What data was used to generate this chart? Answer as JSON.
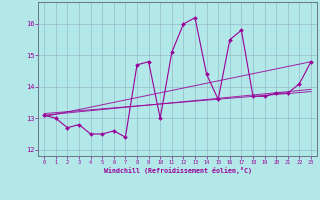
{
  "xlabel": "Windchill (Refroidissement éolien,°C)",
  "bg_color": "#b3e8e8",
  "line_color": "#990099",
  "grid_color": "#99bbcc",
  "x_hours": [
    0,
    1,
    2,
    3,
    4,
    5,
    6,
    7,
    8,
    9,
    10,
    11,
    12,
    13,
    14,
    15,
    16,
    17,
    18,
    19,
    20,
    21,
    22,
    23
  ],
  "windchill": [
    13.1,
    13.0,
    12.7,
    12.8,
    12.5,
    12.5,
    12.6,
    12.4,
    14.7,
    14.8,
    13.0,
    15.1,
    16.0,
    16.2,
    14.4,
    13.6,
    15.5,
    15.8,
    13.7,
    13.7,
    13.8,
    13.8,
    14.1,
    14.8
  ],
  "ylim": [
    11.8,
    16.7
  ],
  "xlim": [
    -0.5,
    23.5
  ],
  "yticks": [
    12,
    13,
    14,
    15,
    16
  ],
  "trend_lines": [
    {
      "x0": 0,
      "y0": 13.05,
      "x1": 23,
      "y1": 14.8
    },
    {
      "x0": 0,
      "y0": 13.15,
      "x1": 23,
      "y1": 13.85
    },
    {
      "x0": 0,
      "y0": 13.1,
      "x1": 23,
      "y1": 13.92
    }
  ]
}
